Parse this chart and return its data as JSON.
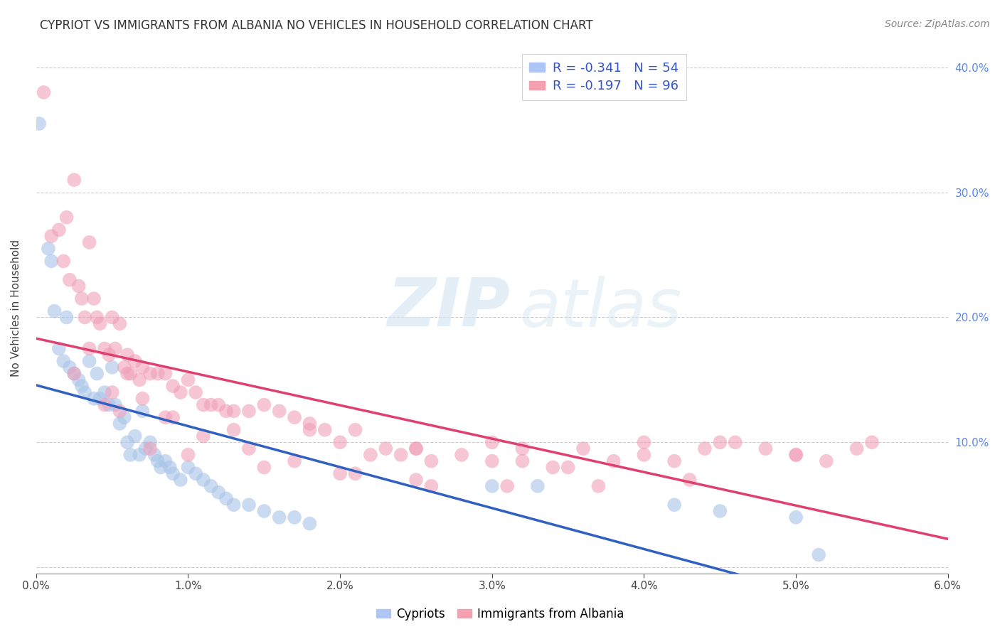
{
  "title": "CYPRIOT VS IMMIGRANTS FROM ALBANIA NO VEHICLES IN HOUSEHOLD CORRELATION CHART",
  "source": "Source: ZipAtlas.com",
  "ylabel": "No Vehicles in Household",
  "xlim": [
    0.0,
    0.06
  ],
  "ylim": [
    -0.005,
    0.42
  ],
  "yticks": [
    0.0,
    0.1,
    0.2,
    0.3,
    0.4
  ],
  "ytick_labels": [
    "",
    "10.0%",
    "20.0%",
    "30.0%",
    "40.0%"
  ],
  "xticks": [
    0.0,
    0.01,
    0.02,
    0.03,
    0.04,
    0.05,
    0.06
  ],
  "series1_color": "#a8c4e8",
  "series2_color": "#f0a0b8",
  "line1_color": "#3060c0",
  "line2_color": "#e04070",
  "watermark_zip": "ZIP",
  "watermark_atlas": "atlas",
  "cypriot_x": [
    0.0002,
    0.0008,
    0.001,
    0.0012,
    0.0015,
    0.0018,
    0.002,
    0.0022,
    0.0025,
    0.0028,
    0.003,
    0.0032,
    0.0035,
    0.0038,
    0.004,
    0.0042,
    0.0045,
    0.0048,
    0.005,
    0.0052,
    0.0055,
    0.0058,
    0.006,
    0.0062,
    0.0065,
    0.0068,
    0.007,
    0.0072,
    0.0075,
    0.0078,
    0.008,
    0.0082,
    0.0085,
    0.0088,
    0.009,
    0.0095,
    0.01,
    0.0105,
    0.011,
    0.0115,
    0.012,
    0.0125,
    0.013,
    0.014,
    0.015,
    0.016,
    0.017,
    0.018,
    0.03,
    0.033,
    0.042,
    0.045,
    0.05,
    0.0515
  ],
  "cypriot_y": [
    0.355,
    0.255,
    0.245,
    0.205,
    0.175,
    0.165,
    0.2,
    0.16,
    0.155,
    0.15,
    0.145,
    0.14,
    0.165,
    0.135,
    0.155,
    0.135,
    0.14,
    0.13,
    0.16,
    0.13,
    0.115,
    0.12,
    0.1,
    0.09,
    0.105,
    0.09,
    0.125,
    0.095,
    0.1,
    0.09,
    0.085,
    0.08,
    0.085,
    0.08,
    0.075,
    0.07,
    0.08,
    0.075,
    0.07,
    0.065,
    0.06,
    0.055,
    0.05,
    0.05,
    0.045,
    0.04,
    0.04,
    0.035,
    0.065,
    0.065,
    0.05,
    0.045,
    0.04,
    0.01
  ],
  "albania_x": [
    0.0005,
    0.001,
    0.0015,
    0.0018,
    0.002,
    0.0022,
    0.0025,
    0.0028,
    0.003,
    0.0032,
    0.0035,
    0.0038,
    0.004,
    0.0042,
    0.0045,
    0.0048,
    0.005,
    0.0052,
    0.0055,
    0.0058,
    0.006,
    0.0062,
    0.0065,
    0.0068,
    0.007,
    0.0075,
    0.008,
    0.0085,
    0.009,
    0.0095,
    0.01,
    0.0105,
    0.011,
    0.0115,
    0.012,
    0.0125,
    0.013,
    0.014,
    0.015,
    0.016,
    0.017,
    0.018,
    0.019,
    0.02,
    0.021,
    0.022,
    0.023,
    0.024,
    0.025,
    0.026,
    0.028,
    0.03,
    0.032,
    0.034,
    0.036,
    0.038,
    0.04,
    0.042,
    0.044,
    0.046,
    0.048,
    0.05,
    0.0025,
    0.005,
    0.0075,
    0.01,
    0.015,
    0.02,
    0.025,
    0.03,
    0.035,
    0.04,
    0.045,
    0.05,
    0.052,
    0.054,
    0.055,
    0.032,
    0.025,
    0.018,
    0.013,
    0.009,
    0.006,
    0.0035,
    0.0045,
    0.0055,
    0.007,
    0.0085,
    0.011,
    0.014,
    0.017,
    0.021,
    0.026,
    0.031,
    0.037,
    0.043
  ],
  "albania_y": [
    0.38,
    0.265,
    0.27,
    0.245,
    0.28,
    0.23,
    0.31,
    0.225,
    0.215,
    0.2,
    0.26,
    0.215,
    0.2,
    0.195,
    0.175,
    0.17,
    0.2,
    0.175,
    0.195,
    0.16,
    0.17,
    0.155,
    0.165,
    0.15,
    0.16,
    0.155,
    0.155,
    0.155,
    0.145,
    0.14,
    0.15,
    0.14,
    0.13,
    0.13,
    0.13,
    0.125,
    0.125,
    0.125,
    0.13,
    0.125,
    0.12,
    0.115,
    0.11,
    0.1,
    0.11,
    0.09,
    0.095,
    0.09,
    0.095,
    0.085,
    0.09,
    0.1,
    0.085,
    0.08,
    0.095,
    0.085,
    0.1,
    0.085,
    0.095,
    0.1,
    0.095,
    0.09,
    0.155,
    0.14,
    0.095,
    0.09,
    0.08,
    0.075,
    0.07,
    0.085,
    0.08,
    0.09,
    0.1,
    0.09,
    0.085,
    0.095,
    0.1,
    0.095,
    0.095,
    0.11,
    0.11,
    0.12,
    0.155,
    0.175,
    0.13,
    0.125,
    0.135,
    0.12,
    0.105,
    0.095,
    0.085,
    0.075,
    0.065,
    0.065,
    0.065,
    0.07
  ]
}
